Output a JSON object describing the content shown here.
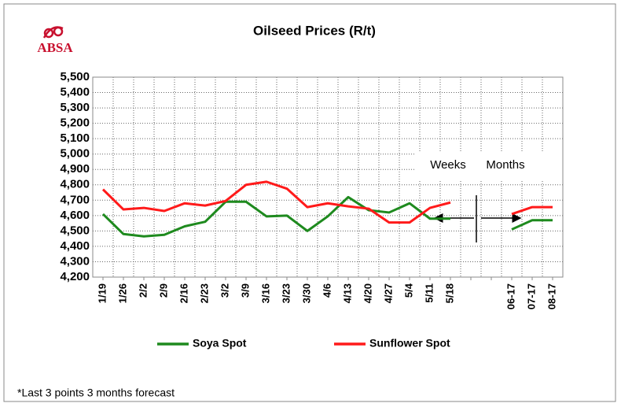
{
  "logo": "ABSA",
  "chart_data": {
    "type": "line",
    "title": "Oilseed Prices (R/t)",
    "categories": [
      "1/19",
      "1/26",
      "2/2",
      "2/9",
      "2/16",
      "2/23",
      "3/2",
      "3/9",
      "3/16",
      "3/23",
      "3/30",
      "4/6",
      "4/13",
      "4/20",
      "4/27",
      "5/4",
      "5/11",
      "5/18",
      null,
      null,
      "06-17",
      "07-17",
      "08-17"
    ],
    "series": [
      {
        "name": "Soya Spot",
        "color": "#1e8a1e",
        "values": [
          4610,
          4480,
          4465,
          4475,
          4530,
          4560,
          4690,
          4690,
          4595,
          4600,
          4500,
          4595,
          4720,
          4635,
          4620,
          4680,
          4580,
          4580,
          null,
          null,
          4510,
          4570,
          4570
        ]
      },
      {
        "name": "Sunflower Spot",
        "color": "#ff1a1a",
        "values": [
          4770,
          4640,
          4650,
          4630,
          4680,
          4665,
          4695,
          4800,
          4820,
          4775,
          4655,
          4680,
          4660,
          4645,
          4555,
          4555,
          4650,
          4685,
          null,
          null,
          4610,
          4655,
          4655
        ]
      }
    ],
    "ylim": [
      4200,
      5500
    ],
    "yticks": [
      {
        "value": 4200,
        "label": "4,200"
      },
      {
        "value": 4300,
        "label": "4,300"
      },
      {
        "value": 4400,
        "label": "4,400"
      },
      {
        "value": 4500,
        "label": "4,500"
      },
      {
        "value": 4600,
        "label": "4,600"
      },
      {
        "value": 4700,
        "label": "4,700"
      },
      {
        "value": 4800,
        "label": "4,800"
      },
      {
        "value": 4900,
        "label": "4,900"
      },
      {
        "value": 5000,
        "label": "5,000"
      },
      {
        "value": 5100,
        "label": "5,100"
      },
      {
        "value": 5200,
        "label": "5,200"
      },
      {
        "value": 5300,
        "label": "5,300"
      },
      {
        "value": 5400,
        "label": "5,400"
      },
      {
        "value": 5500,
        "label": "5,500"
      }
    ],
    "grid": true,
    "legend": "bottom",
    "annotations": [
      "Weeks",
      "Months"
    ],
    "footnote": "*Last 3 points 3 months forecast"
  }
}
